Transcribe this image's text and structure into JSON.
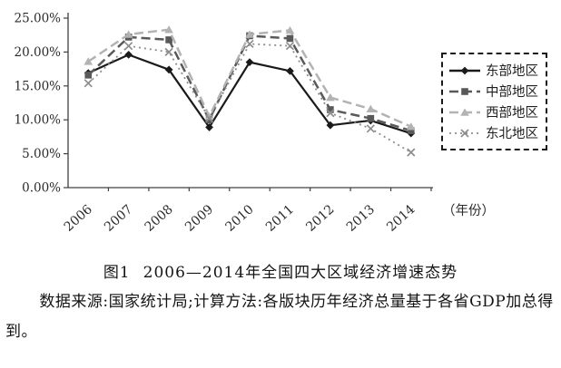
{
  "chart_data": {
    "type": "line",
    "x": [
      "2006",
      "2007",
      "2008",
      "2009",
      "2010",
      "2011",
      "2012",
      "2013",
      "2014"
    ],
    "series": [
      {
        "name": "东部地区",
        "marker": "diamond",
        "color": "#1a1a1a",
        "dash": "solid",
        "values": [
          16.9,
          19.6,
          17.4,
          8.9,
          18.5,
          17.2,
          9.2,
          9.9,
          8.0
        ]
      },
      {
        "name": "中部地区",
        "marker": "square",
        "color": "#595959",
        "dash": "dashed",
        "values": [
          16.6,
          22.2,
          21.8,
          10.0,
          22.4,
          22.0,
          11.5,
          10.2,
          8.4
        ]
      },
      {
        "name": "西部地区",
        "marker": "triangle",
        "color": "#b3b3b3",
        "dash": "dashed",
        "values": [
          18.6,
          22.6,
          23.3,
          10.5,
          22.6,
          23.2,
          13.3,
          11.6,
          9.0
        ]
      },
      {
        "name": "东北地区",
        "marker": "x",
        "color": "#8c8c8c",
        "dash": "dashdot",
        "values": [
          15.4,
          20.9,
          20.0,
          10.2,
          21.2,
          20.9,
          11.0,
          8.7,
          5.2
        ]
      }
    ],
    "title": "",
    "xlabel": "（年份）",
    "ylabel": "",
    "ylim": [
      0,
      25
    ],
    "ytick_step": 5,
    "ytick_labels": [
      "0.00%",
      "5.00%",
      "10.00%",
      "15.00%",
      "20.00%",
      "25.00%"
    ],
    "grid": false,
    "legend_position": "right"
  },
  "caption": {
    "figure_label": "图1",
    "title": "2006—2014年全国四大区域经济增速态势"
  },
  "source_note": "数据来源:国家统计局;计算方法:各版块历年经济总量基于各省GDP加总得到。"
}
